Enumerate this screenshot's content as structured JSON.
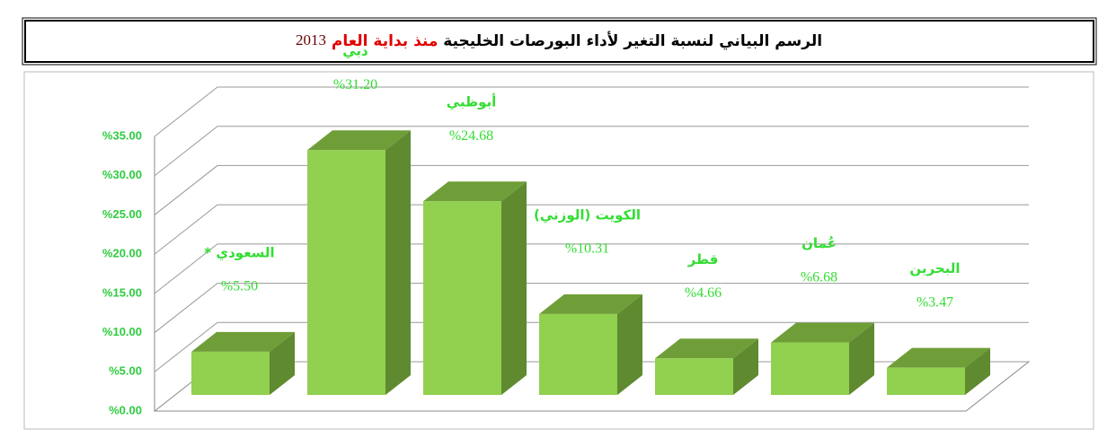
{
  "chart_data": {
    "type": "bar3d",
    "title": {
      "main": "الرسم البياني لنسبة التغير لأداء البورصات الخليجية",
      "highlight": "منذ بداية العام",
      "year": "2013"
    },
    "categories": [
      "السعودي *",
      "دبي",
      "أبوظبي",
      "الكويت (الوزني)",
      "قطر",
      "عُمان",
      "البحرين"
    ],
    "values": [
      5.5,
      31.2,
      24.68,
      10.31,
      4.66,
      6.68,
      3.47
    ],
    "value_labels": [
      "%5.50",
      "%31.20",
      "%24.68",
      "%10.31",
      "%4.66",
      "%6.68",
      "%3.47"
    ],
    "color": "#92d050",
    "ylim": [
      0,
      35
    ],
    "yticks": [
      {
        "value": 0,
        "label": "%0.00"
      },
      {
        "value": 5,
        "label": "%5.00"
      },
      {
        "value": 10,
        "label": "%10.00"
      },
      {
        "value": 15,
        "label": "%15.00"
      },
      {
        "value": 20,
        "label": "%20.00"
      },
      {
        "value": 25,
        "label": "%25.00"
      },
      {
        "value": 30,
        "label": "%30.00"
      },
      {
        "value": 35,
        "label": "%35.00"
      }
    ],
    "grid": true
  }
}
